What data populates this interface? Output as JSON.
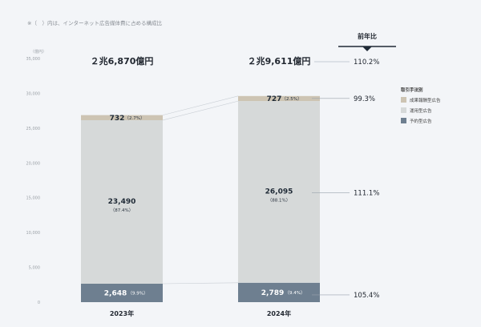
{
  "note": "※（　）内は、インターネット広告媒体費に占める構成比",
  "colors": {
    "seika": "#cdc4b3",
    "unyo": "#d6d9d9",
    "yoyaku": "#6e7f90"
  },
  "chart_data": {
    "type": "bar",
    "stacked": true,
    "ylabel": "（億円）",
    "ylim": [
      0,
      35000
    ],
    "yticks": [
      "0",
      "5,000",
      "10,000",
      "15,000",
      "20,000",
      "25,000",
      "30,000",
      "35,000"
    ],
    "categories": [
      "2023年",
      "2024年"
    ],
    "totals": [
      "２兆6,870億円",
      "２兆9,611億円"
    ],
    "legend_title": "取引手法別",
    "series": [
      {
        "name": "予約型広告",
        "values": [
          2648,
          2789
        ],
        "value_labels": [
          "2,648",
          "2,789"
        ],
        "pct_labels": [
          "（9.9%）",
          "（9.4%）"
        ]
      },
      {
        "name": "運用型広告",
        "values": [
          23490,
          26095
        ],
        "value_labels": [
          "23,490",
          "26,095"
        ],
        "pct_labels": [
          "（87.4%）",
          "（88.1%）"
        ]
      },
      {
        "name": "成果報酬型広告",
        "values": [
          732,
          727
        ],
        "value_labels": [
          "732",
          "727"
        ],
        "pct_labels": [
          "（2.7%）",
          "（2.5%）"
        ]
      }
    ],
    "yoy_title": "前年比",
    "yoy": {
      "total": "110.2%",
      "seika": "99.3%",
      "unyo": "111.1%",
      "yoyaku": "105.4%"
    }
  }
}
